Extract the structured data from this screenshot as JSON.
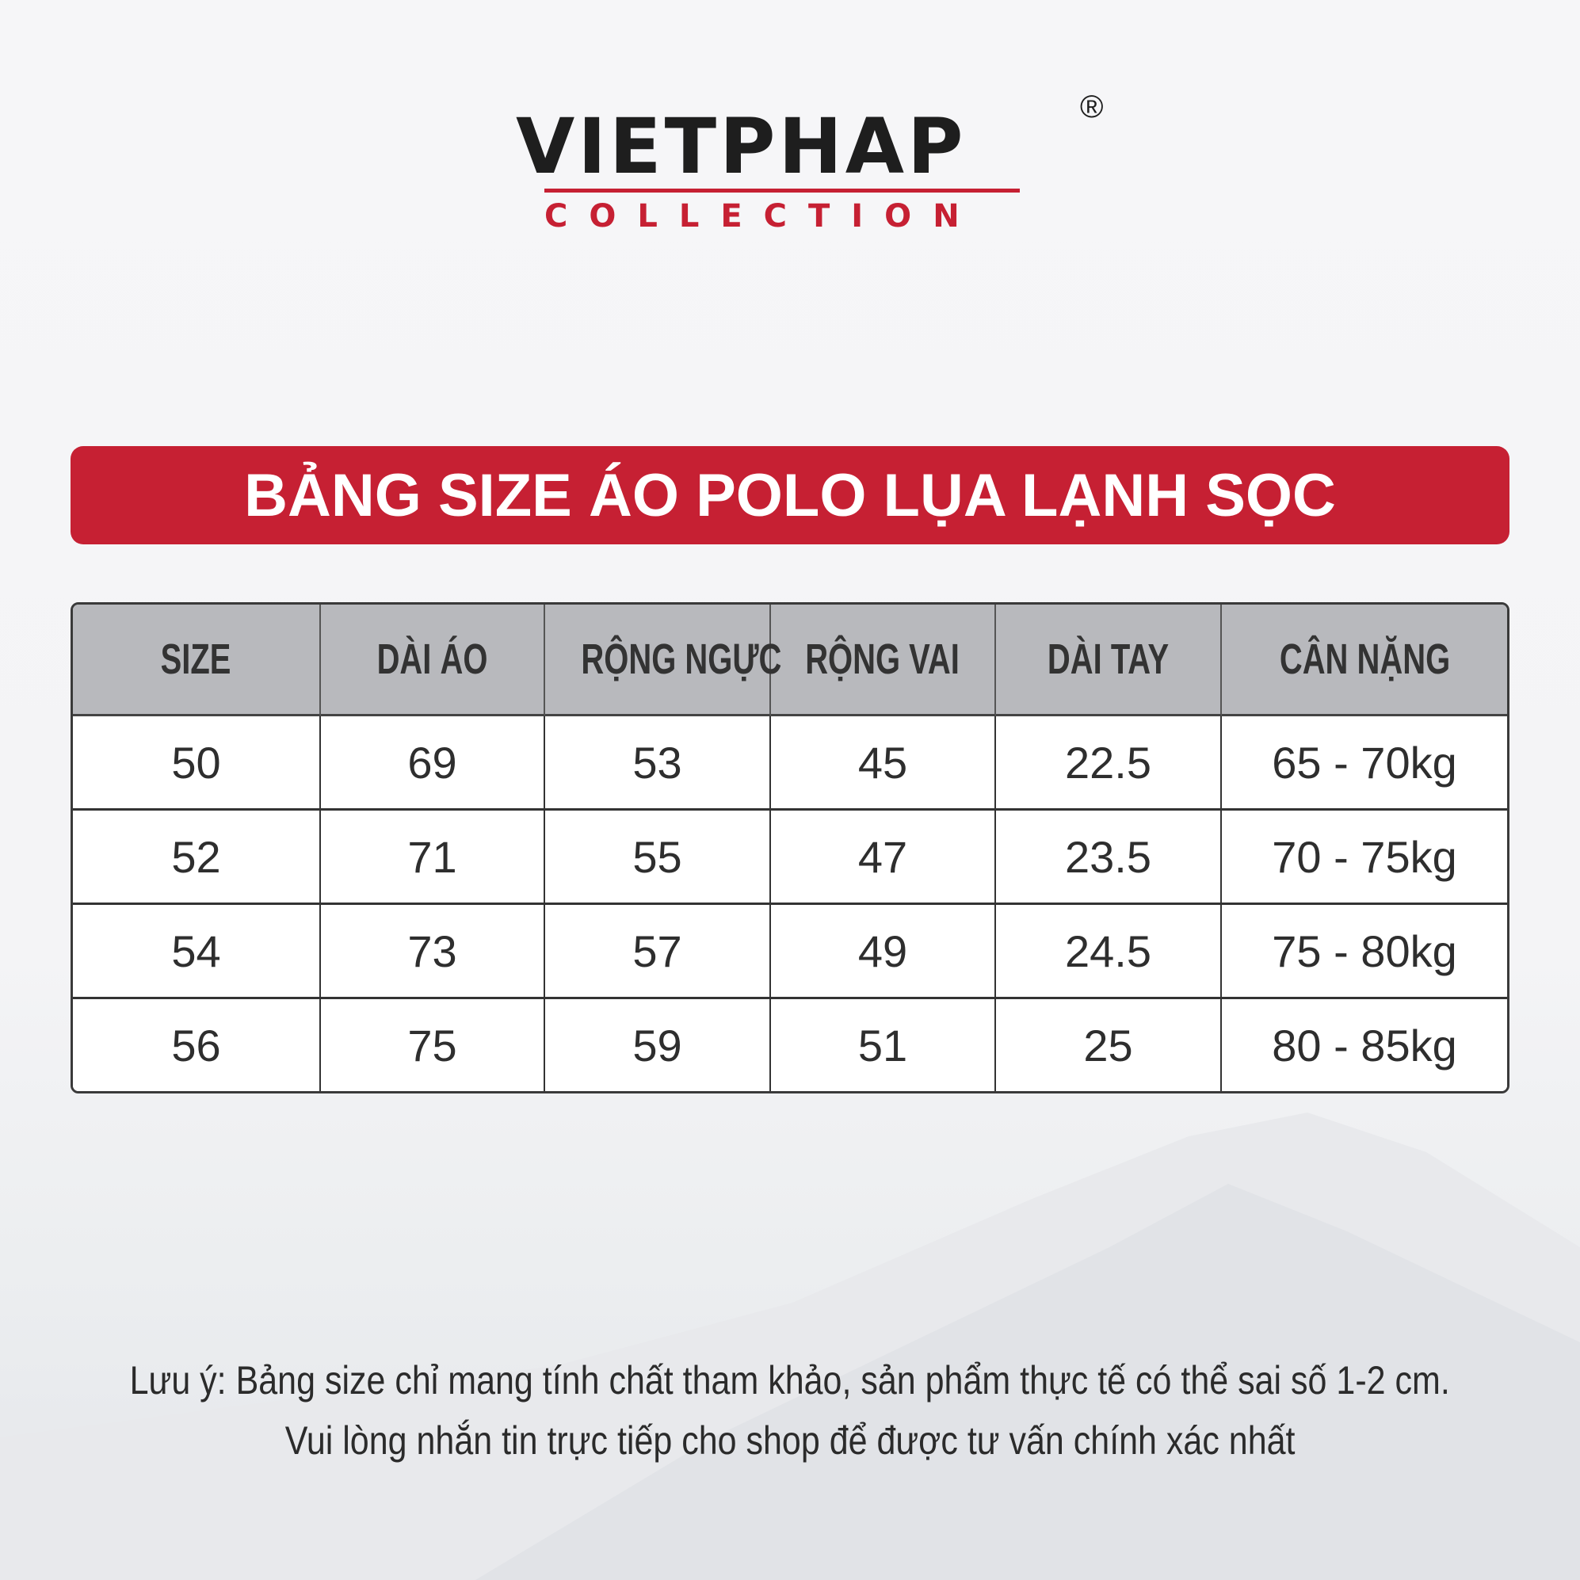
{
  "logo": {
    "brand": "VIETPHAP",
    "registered": "®",
    "sub": "COLLECTION"
  },
  "colors": {
    "brand_red": "#c62033",
    "header_gray": "#b8b9bd",
    "text": "#2b2b2b"
  },
  "title": "BẢNG SIZE ÁO POLO LỤA LẠNH SỌC",
  "table": {
    "headers": [
      "SIZE",
      "DÀI ÁO",
      "RỘNG NGỰC",
      "RỘNG VAI",
      "DÀI TAY",
      "CÂN NẶNG"
    ],
    "rows": [
      [
        "50",
        "69",
        "53",
        "45",
        "22.5",
        "65 - 70kg"
      ],
      [
        "52",
        "71",
        "55",
        "47",
        "23.5",
        "70 - 75kg"
      ],
      [
        "54",
        "73",
        "57",
        "49",
        "24.5",
        "75 - 80kg"
      ],
      [
        "56",
        "75",
        "59",
        "51",
        "25",
        "80 - 85kg"
      ]
    ]
  },
  "note": {
    "line1": "Lưu ý: Bảng size chỉ mang tính chất tham khảo, sản phẩm thực tế có thể sai số 1-2 cm.",
    "line2": "Vui lòng nhắn tin trực tiếp cho shop để được tư vấn chính xác nhất"
  }
}
